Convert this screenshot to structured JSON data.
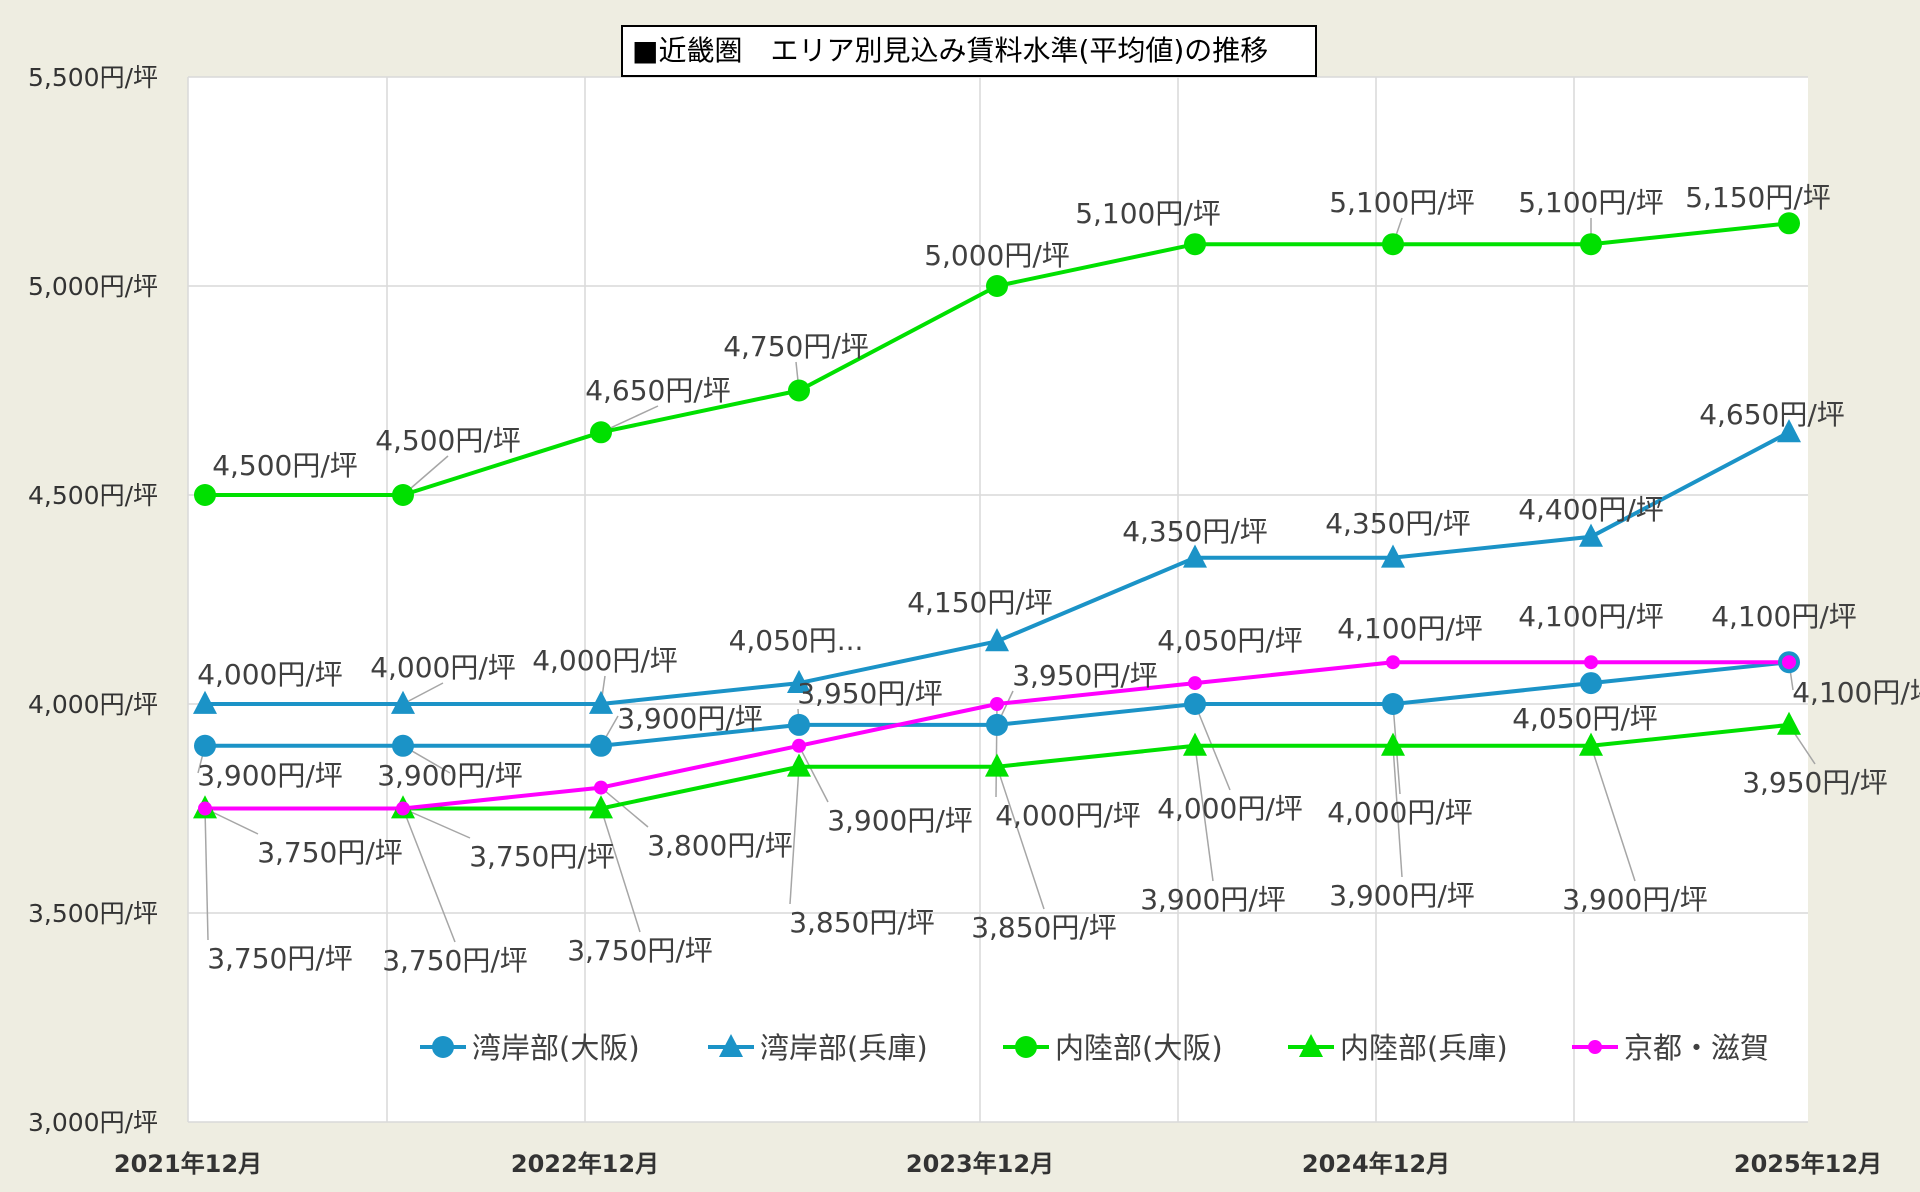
{
  "chart_data": {
    "type": "line",
    "title": "■近畿圏　エリア別見込み賃料水準(平均値)の推移",
    "x": [
      "2021年12月",
      "2022年06月",
      "2022年12月",
      "2023年06月",
      "2023年12月",
      "2024年06月",
      "2024年12月",
      "2025年06月",
      "2025年12月"
    ],
    "x_tick_labels": [
      "2021年12月",
      "2022年12月",
      "2023年12月",
      "2024年12月",
      "2025年12月"
    ],
    "y_tick_labels": [
      "3,000円/坪",
      "3,500円/坪",
      "4,000円/坪",
      "4,500円/坪",
      "5,000円/坪",
      "5,500円/坪"
    ],
    "ylim": [
      3000,
      5500
    ],
    "grid": true,
    "legend_position": "bottom",
    "unit_suffix": "円/坪",
    "series": [
      {
        "name": "湾岸部(大阪)",
        "marker": "circle",
        "color": "#1B93C7",
        "values": [
          3900,
          3900,
          3900,
          3950,
          3950,
          4000,
          4000,
          4050,
          4100
        ],
        "labels": [
          "3,900円/坪",
          "3,900円/坪",
          "3,900円/坪",
          "3,950円/坪",
          "3,950円/坪",
          "4,000円/坪",
          "4,000円/坪",
          "4,050円/坪",
          "4,100円/坪"
        ]
      },
      {
        "name": "湾岸部(兵庫)",
        "marker": "triangle",
        "color": "#1B93C7",
        "values": [
          4000,
          4000,
          4000,
          4050,
          4150,
          4350,
          4350,
          4400,
          4650
        ],
        "labels": [
          "4,000円/坪",
          "4,000円/坪",
          "4,000円/坪",
          "4,050円...",
          "4,150円/坪",
          "4,350円/坪",
          "4,350円/坪",
          "4,400円/坪",
          "4,650円/坪"
        ]
      },
      {
        "name": "内陸部(大阪)",
        "marker": "circle",
        "color": "#00E000",
        "values": [
          4500,
          4500,
          4650,
          4750,
          5000,
          5100,
          5100,
          5100,
          5150
        ],
        "labels": [
          "4,500円/坪",
          "4,500円/坪",
          "4,650円/坪",
          "4,750円/坪",
          "5,000円/坪",
          "5,100円/坪",
          "5,100円/坪",
          "5,100円/坪",
          "5,150円/坪"
        ]
      },
      {
        "name": "内陸部(兵庫)",
        "marker": "triangle",
        "color": "#00E000",
        "values": [
          3750,
          3750,
          3750,
          3850,
          3850,
          3900,
          3900,
          3900,
          3950
        ],
        "labels": [
          "3,750円/坪",
          "3,750円/坪",
          "3,750円/坪",
          "3,850円/坪",
          "3,850円/坪",
          "3,900円/坪",
          "3,900円/坪",
          "3,900円/坪",
          "3,950円/坪"
        ]
      },
      {
        "name": "京都・滋賀",
        "marker": "small-circle",
        "color": "#FF00FF",
        "values": [
          3750,
          3750,
          3800,
          3900,
          4000,
          4050,
          4100,
          4100,
          4100
        ],
        "labels": [
          "3,750円/坪",
          "3,750円/坪",
          "3,800円/坪",
          "3,900円/坪",
          "4,000円/坪",
          "4,050円/坪",
          "4,100円/坪",
          "4,100円/坪",
          "4,100円/坪"
        ]
      }
    ]
  }
}
